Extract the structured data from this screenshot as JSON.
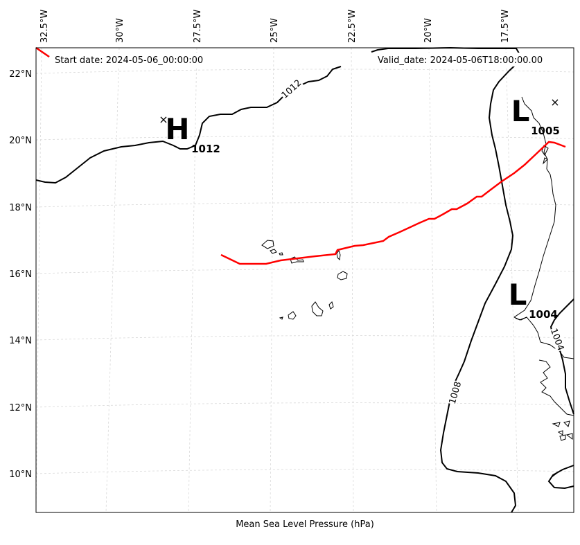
{
  "map": {
    "start_date": "Start date: 2024-05-06_00:00:00",
    "valid_date": "Valid_date: 2024-05-06T18:00:00.00",
    "xlabel": "Mean Sea Level Pressure (hPa)",
    "lon_labels": [
      "32.5°W",
      "30°W",
      "27.5°W",
      "25°W",
      "22.5°W",
      "20°W",
      "17.5°W"
    ],
    "lat_labels": [
      "22°N",
      "20°N",
      "18°N",
      "16°N",
      "14°N",
      "12°N",
      "10°N"
    ],
    "contour_labels": [
      "1012",
      "1008",
      "1004"
    ],
    "pressure_centers": [
      {
        "type": "H",
        "value": "1012"
      },
      {
        "type": "L",
        "value": "1005"
      },
      {
        "type": "L",
        "value": "1004"
      }
    ],
    "track_color": "#ff0000",
    "contour_color": "#000000",
    "grid": true
  }
}
